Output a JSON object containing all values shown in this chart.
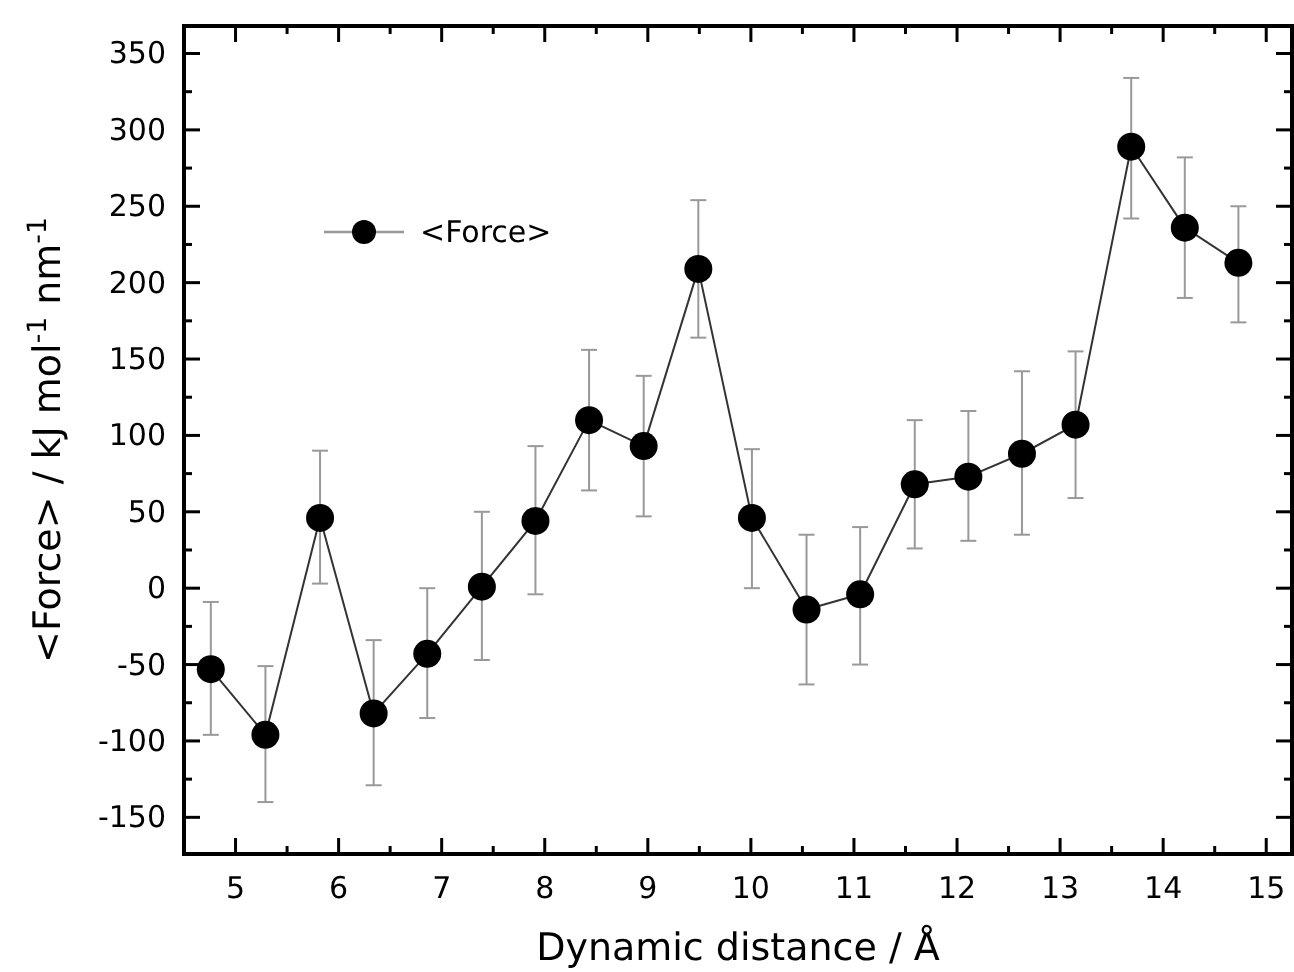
{
  "chart_data": {
    "type": "line",
    "xlabel": "Dynamic distance / Å",
    "ylabel": "<Force> / kJ mol$^{-1}$ nm$^{-1}$",
    "x": [
      4.76,
      5.29,
      5.82,
      6.34,
      6.86,
      7.39,
      7.91,
      8.43,
      8.96,
      9.49,
      10.01,
      10.54,
      11.06,
      11.59,
      12.11,
      12.63,
      13.15,
      13.69,
      14.21,
      14.73
    ],
    "series": [
      {
        "name": "<Force>",
        "color": "#000000",
        "values": [
          -53,
          -96,
          46,
          -82,
          -43,
          1,
          44,
          110,
          93,
          209,
          46,
          -14,
          -4,
          68,
          73,
          88,
          107,
          289,
          236,
          213
        ],
        "errors": [
          [
            -96,
            -9
          ],
          [
            -140,
            -51
          ],
          [
            3,
            90
          ],
          [
            -129,
            -34
          ],
          [
            -85,
            0
          ],
          [
            -47,
            50
          ],
          [
            -4,
            93
          ],
          [
            64,
            156
          ],
          [
            47,
            139
          ],
          [
            164,
            254
          ],
          [
            0,
            91
          ],
          [
            -63,
            35
          ],
          [
            -50,
            40
          ],
          [
            26,
            110
          ],
          [
            31,
            116
          ],
          [
            35,
            142
          ],
          [
            59,
            155
          ],
          [
            242,
            334
          ],
          [
            190,
            282
          ],
          [
            174,
            250
          ]
        ]
      }
    ],
    "xlim": [
      4.5,
      15.25
    ],
    "ylim": [
      -174,
      368
    ],
    "xticks": [
      5,
      {
        "value": 5.5,
        "label": null
      },
      6,
      {
        "value": 6.5,
        "label": null
      },
      7,
      {
        "value": 7.5,
        "label": null
      },
      8,
      {
        "value": 8.5,
        "label": null
      },
      9,
      {
        "value": 9.5,
        "label": null
      },
      10,
      {
        "value": 10.5,
        "label": null
      },
      11,
      {
        "value": 11.5,
        "label": null
      },
      12,
      {
        "value": 12.5,
        "label": null
      },
      13,
      {
        "value": 13.5,
        "label": null
      },
      14,
      {
        "value": 14.5,
        "label": null
      },
      15
    ],
    "yticks": [
      -150,
      {
        "value": -125,
        "label": null
      },
      -100,
      {
        "value": -75,
        "label": null
      },
      -50,
      {
        "value": -25,
        "label": null
      },
      0,
      {
        "value": 25,
        "label": null
      },
      50,
      {
        "value": 75,
        "label": null
      },
      100,
      {
        "value": 125,
        "label": null
      },
      150,
      {
        "value": 175,
        "label": null
      },
      200,
      {
        "value": 225,
        "label": null
      },
      250,
      {
        "value": 275,
        "label": null
      },
      300,
      {
        "value": 325,
        "label": null
      },
      350
    ],
    "grid": false,
    "legend": "top left",
    "marker": "circle",
    "line_style": "solid"
  }
}
